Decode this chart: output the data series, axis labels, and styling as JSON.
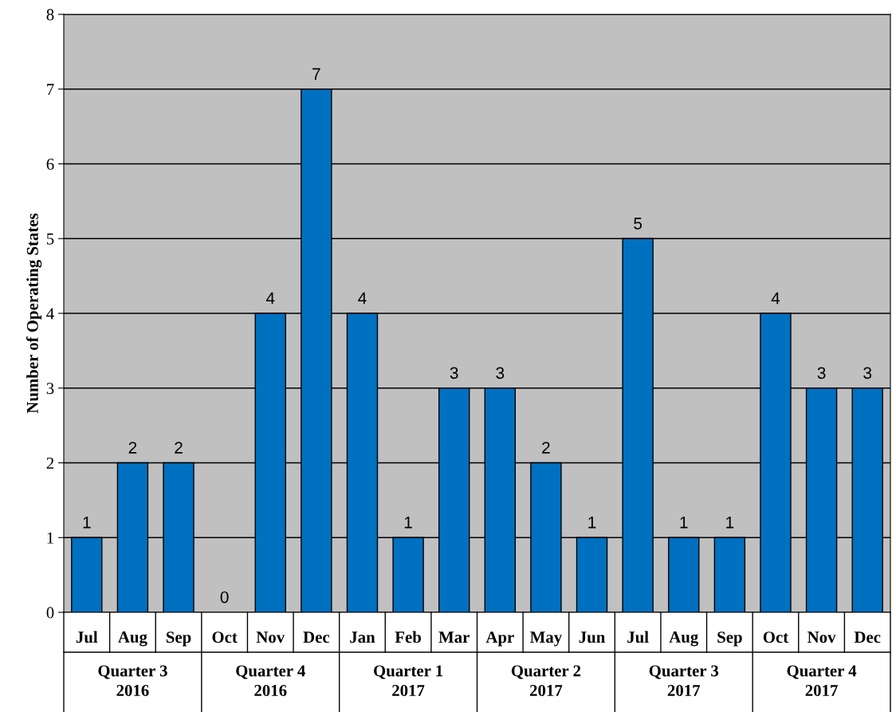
{
  "chart_data": {
    "type": "bar",
    "ylabel": "Number of Operating States",
    "categories": [
      "Jul",
      "Aug",
      "Sep",
      "Oct",
      "Nov",
      "Dec",
      "Jan",
      "Feb",
      "Mar",
      "Apr",
      "May",
      "Jun",
      "Jul",
      "Aug",
      "Sep",
      "Oct",
      "Nov",
      "Dec"
    ],
    "values": [
      1,
      2,
      2,
      0,
      4,
      7,
      4,
      1,
      3,
      3,
      2,
      1,
      5,
      1,
      1,
      4,
      3,
      3
    ],
    "color": "#0070c0",
    "ylim": [
      0,
      8
    ],
    "yticks": [
      0,
      1,
      2,
      3,
      4,
      5,
      6,
      7,
      8
    ],
    "grid": "y",
    "data_labels": true,
    "annotations": [
      "Quarter 3\n2016",
      "Quarter 4\n2016",
      "Quarter 1\n2017",
      "Quarter 2\n2017",
      "Quarter 3\n2017",
      "Quarter 4\n2017"
    ]
  }
}
